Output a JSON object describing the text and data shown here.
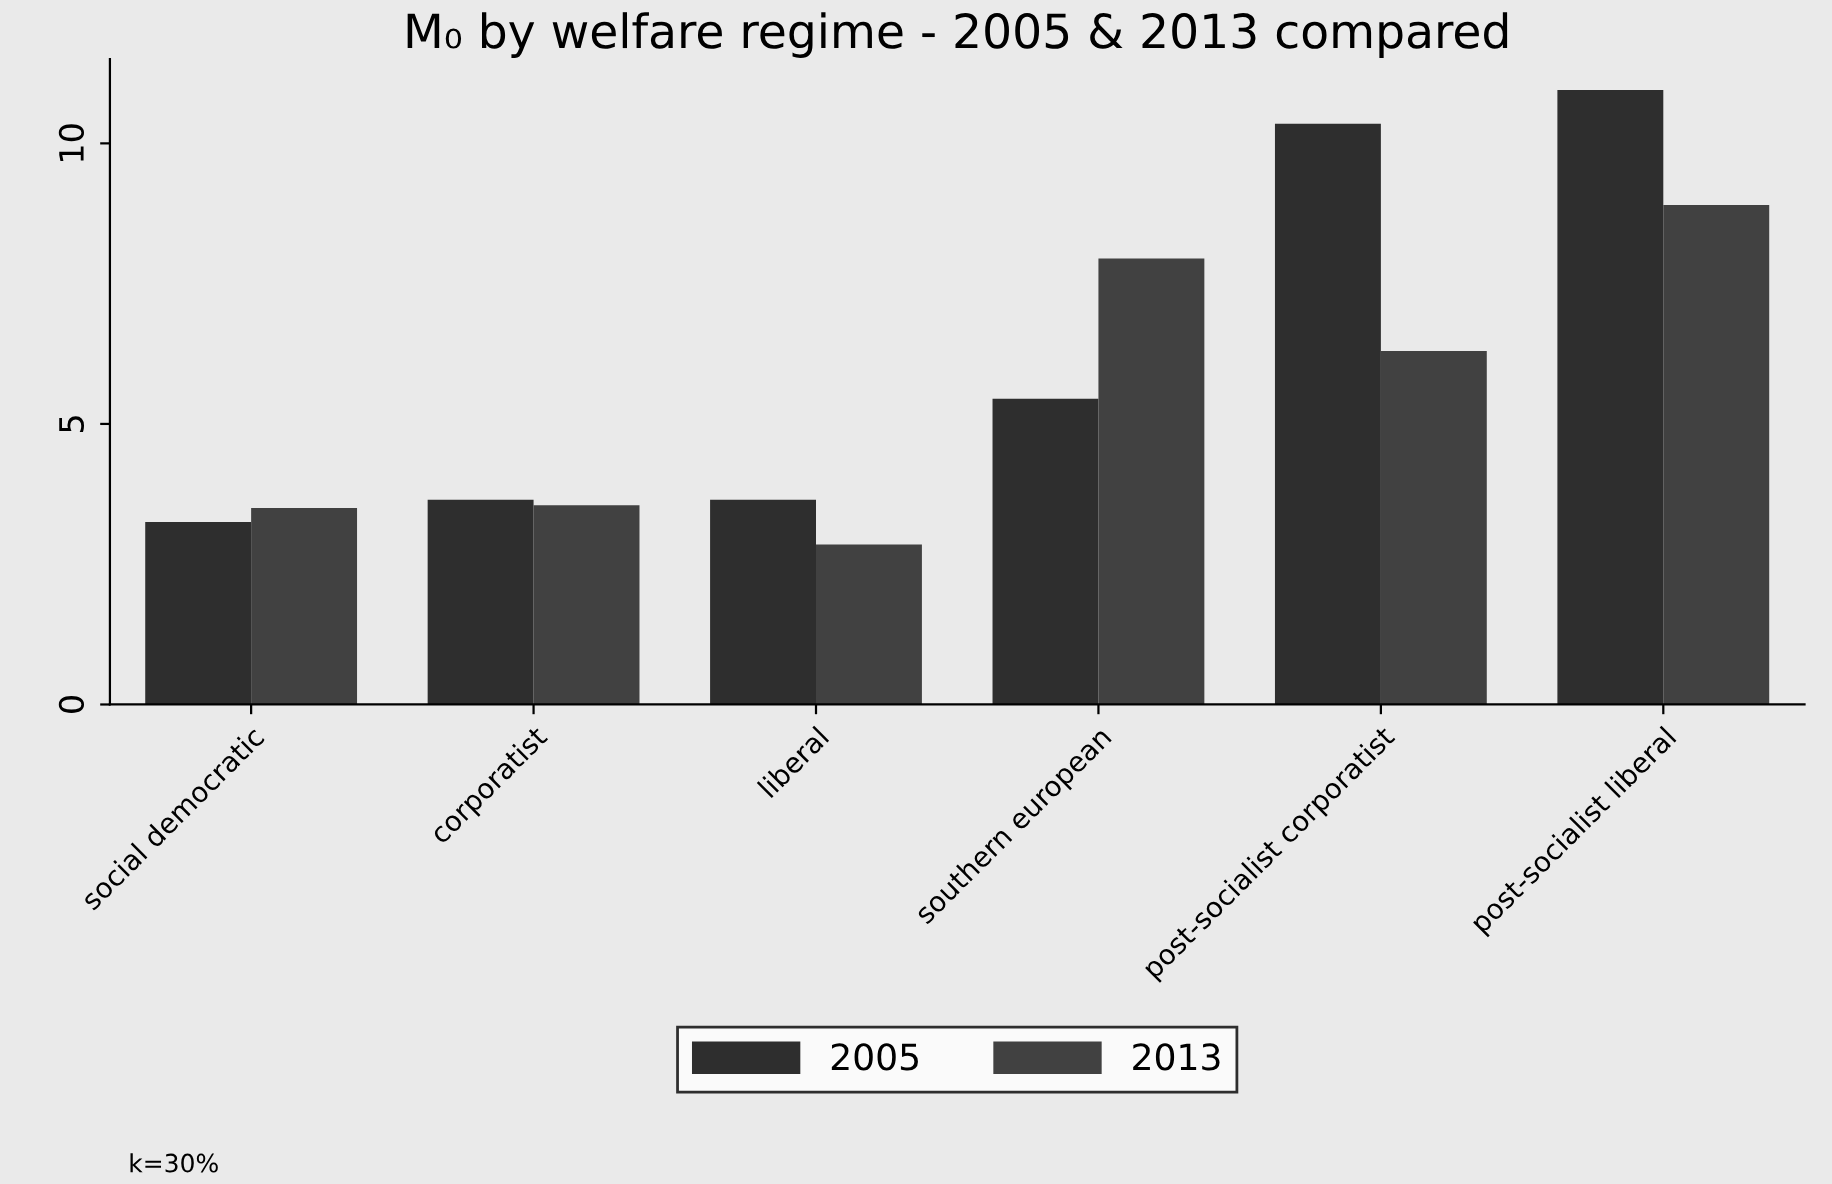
{
  "chart_data": {
    "type": "bar",
    "title": "M₀ by welfare regime - 2005 & 2013 compared",
    "categories": [
      "social democratic",
      "corporatist",
      "liberal",
      "southern european",
      "post-socialist corporatist",
      "post-socialist liberal"
    ],
    "series": [
      {
        "name": "2005",
        "color": "#2e2e2e",
        "values": [
          3.25,
          3.65,
          3.65,
          5.45,
          10.35,
          10.95
        ]
      },
      {
        "name": "2013",
        "color": "#414141",
        "values": [
          3.5,
          3.55,
          2.85,
          7.95,
          6.3,
          8.9
        ]
      }
    ],
    "ylim": [
      0,
      11.5
    ],
    "yticks": [
      0,
      5,
      10
    ],
    "grid": false,
    "legend": "bottom",
    "annotations": [
      "k=30%"
    ]
  }
}
